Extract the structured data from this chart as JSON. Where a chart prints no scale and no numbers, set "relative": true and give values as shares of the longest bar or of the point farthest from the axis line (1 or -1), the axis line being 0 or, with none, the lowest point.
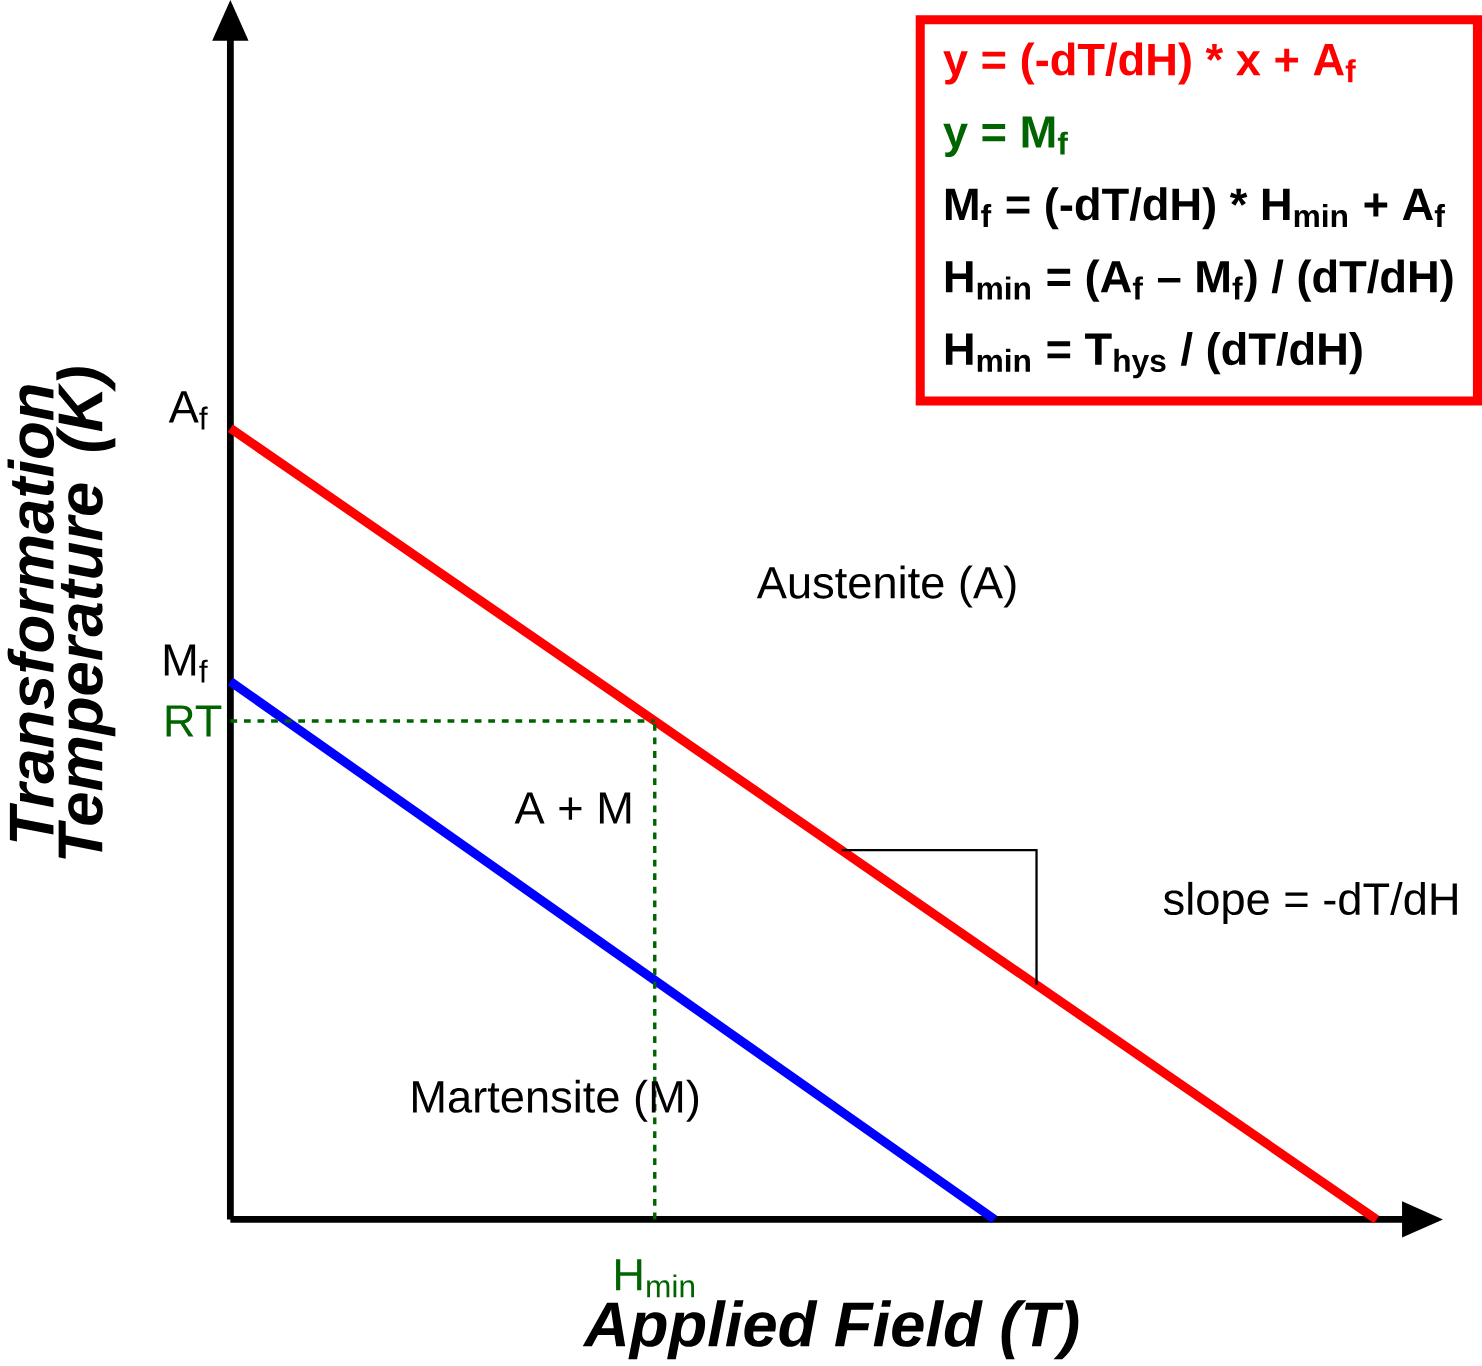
{
  "chart_data": {
    "type": "line",
    "relative": true,
    "xlabel": "Applied Field (T)",
    "ylabel": "Transformation Temperature (K)",
    "categories": [
      null,
      null,
      null,
      null
    ],
    "series": [
      {
        "color": "#ff0000",
        "values": [
          1,
          0.667,
          0.333,
          0
        ]
      },
      {
        "color": "#0000ff",
        "values": [
          0.68,
          0.34,
          0,
          null
        ]
      }
    ],
    "marker": "none",
    "line_style": "solid",
    "ref_lines": [
      {
        "axis": "y",
        "value": 0.63,
        "label": "RT",
        "color": "#006400",
        "line_style": "dashed"
      }
    ],
    "annotations": [
      "y = (-dT/dH) * x  + A$_{f}$",
      "y = M$_{f}$",
      "M$_{f}$ = (-dT/dH) * H$_{min}$ + A$_{f}$",
      "H$_{min}$ = (A$_{f}$ – M$_{f}$) / (dT/dH)",
      "H$_{min}$ = T$_{hys}$ / (dT/dH)",
      "Austenite (A)",
      "A + M",
      "Martensite (M)",
      "slope = -dT/dH",
      "A$_{f}$",
      "M$_{f}$",
      "H$_{min}$"
    ]
  }
}
